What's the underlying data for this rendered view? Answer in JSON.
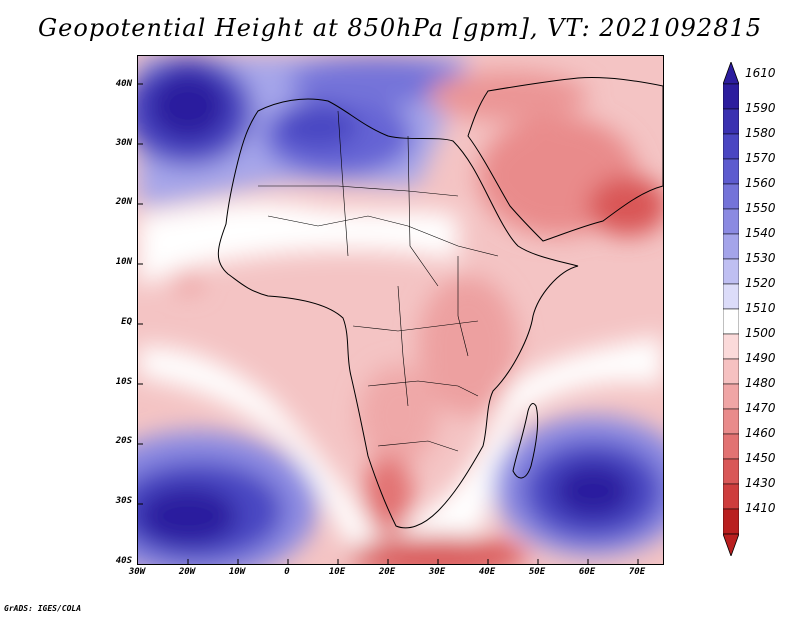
{
  "title": "Geopotential Height at 850hPa [gpm], VT: 2021092815",
  "map": {
    "region": "Africa and Middle East",
    "variable": "Geopotential Height 850hPa",
    "lat_labels": [
      "40N",
      "30N",
      "20N",
      "10N",
      "EQ",
      "10S",
      "20S",
      "30S",
      "40S"
    ],
    "lon_labels": [
      "30W",
      "20W",
      "10W",
      "0",
      "10E",
      "20E",
      "30E",
      "40E",
      "50E",
      "60E",
      "70E"
    ]
  },
  "colorbar": {
    "levels": [
      "1610",
      "1590",
      "1580",
      "1570",
      "1560",
      "1550",
      "1540",
      "1530",
      "1520",
      "1510",
      "1500",
      "1490",
      "1480",
      "1470",
      "1460",
      "1450",
      "1430",
      "1410"
    ],
    "colors": [
      "#2c1d9e",
      "#3a31b1",
      "#4a46c2",
      "#5d5bcf",
      "#7473d9",
      "#8b8ae2",
      "#a4a4ea",
      "#bfbff2",
      "#dcdcf9",
      "#ffffff",
      "#fbdada",
      "#f6c1c1",
      "#f0a5a5",
      "#e98b8b",
      "#e27272",
      "#d95757",
      "#ce3d3d",
      "#b91f1f"
    ]
  },
  "credit": "GrADS: IGES/COLA"
}
